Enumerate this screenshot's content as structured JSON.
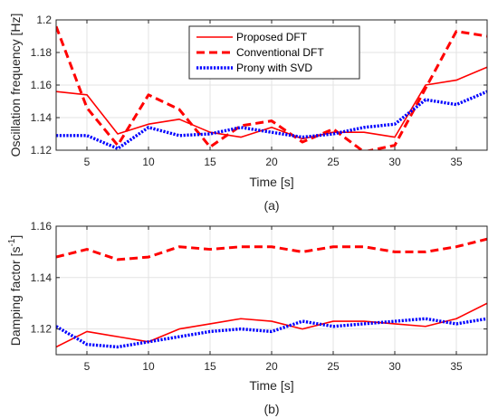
{
  "chart_data": [
    {
      "type": "line",
      "caption": "(a)",
      "xlabel": "Time [s]",
      "ylabel": "Oscillation frequency [Hz]",
      "xlim": [
        2.5,
        37.5
      ],
      "ylim": [
        1.12,
        1.2
      ],
      "xticks": [
        5,
        10,
        15,
        20,
        25,
        30,
        35
      ],
      "yticks": [
        1.12,
        1.14,
        1.16,
        1.18,
        1.2
      ],
      "ytick_labels": [
        "1.12",
        "1.14",
        "1.16",
        "1.18",
        "1.2"
      ],
      "grid": true,
      "legend": "top-center",
      "x": [
        2.5,
        5,
        7.5,
        10,
        12.5,
        15,
        17.5,
        20,
        22.5,
        25,
        27.5,
        30,
        32.5,
        35,
        37.5
      ],
      "series": [
        {
          "name": "Proposed DFT",
          "style": "solid",
          "color": "#ff0000",
          "values": [
            1.156,
            1.154,
            1.13,
            1.136,
            1.139,
            1.131,
            1.128,
            1.134,
            1.127,
            1.131,
            1.131,
            1.128,
            1.16,
            1.163,
            1.171
          ]
        },
        {
          "name": "Conventional DFT",
          "style": "dashed",
          "color": "#ff0000",
          "values": [
            1.196,
            1.146,
            1.123,
            1.154,
            1.145,
            1.122,
            1.135,
            1.138,
            1.125,
            1.133,
            1.119,
            1.123,
            1.158,
            1.193,
            1.19
          ]
        },
        {
          "name": "Prony with SVD",
          "style": "dotted",
          "color": "#0000ff",
          "values": [
            1.129,
            1.129,
            1.121,
            1.134,
            1.129,
            1.13,
            1.134,
            1.131,
            1.128,
            1.13,
            1.134,
            1.136,
            1.151,
            1.148,
            1.156
          ]
        }
      ]
    },
    {
      "type": "line",
      "caption": "(b)",
      "xlabel": "Time [s]",
      "ylabel": "Damping factor [s",
      "ylabel_sup": "-1",
      "ylabel_end": "]",
      "xlim": [
        2.5,
        37.5
      ],
      "ylim": [
        1.11,
        1.16
      ],
      "xticks": [
        5,
        10,
        15,
        20,
        25,
        30,
        35
      ],
      "yticks": [
        1.12,
        1.14,
        1.16
      ],
      "ytick_labels": [
        "1.12",
        "1.14",
        "1.16"
      ],
      "grid": true,
      "x": [
        2.5,
        5,
        7.5,
        10,
        12.5,
        15,
        17.5,
        20,
        22.5,
        25,
        27.5,
        30,
        32.5,
        35,
        37.5
      ],
      "series": [
        {
          "style": "solid",
          "color": "#ff0000",
          "values": [
            1.113,
            1.119,
            1.117,
            1.115,
            1.12,
            1.122,
            1.124,
            1.123,
            1.12,
            1.123,
            1.123,
            1.122,
            1.121,
            1.124,
            1.13
          ]
        },
        {
          "style": "dashed",
          "color": "#ff0000",
          "values": [
            1.148,
            1.151,
            1.147,
            1.148,
            1.152,
            1.151,
            1.152,
            1.152,
            1.15,
            1.152,
            1.152,
            1.15,
            1.15,
            1.152,
            1.155
          ]
        },
        {
          "style": "dotted",
          "color": "#0000ff",
          "values": [
            1.121,
            1.114,
            1.113,
            1.115,
            1.117,
            1.119,
            1.12,
            1.119,
            1.123,
            1.121,
            1.122,
            1.123,
            1.124,
            1.122,
            1.124
          ]
        }
      ]
    }
  ]
}
